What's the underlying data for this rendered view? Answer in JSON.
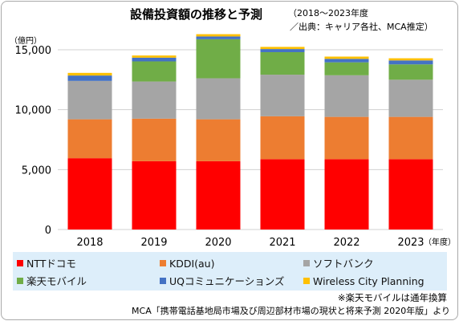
{
  "chart_data": {
    "type": "bar",
    "stacked": true,
    "title": "設備投資額の推移と予測",
    "subtitle_line1": "（2018～2023年度",
    "subtitle_line2": "／出典：キャリア各社、MCA推定）",
    "unit_label": "（億円）",
    "year_suffix": "（年度）",
    "categories": [
      "2018",
      "2019",
      "2020",
      "2021",
      "2022",
      "2023"
    ],
    "ylim": [
      0,
      15000
    ],
    "y_ticks": [
      0,
      5000,
      10000,
      15000
    ],
    "y_tick_labels": [
      "0",
      "5,000",
      "10,000",
      "15,000"
    ],
    "grid": "horizontal",
    "legend_position": "bottom",
    "series": [
      {
        "name": "NTTドコモ",
        "color": "#ff0000",
        "values": [
          5950,
          5700,
          5700,
          5870,
          5870,
          5870
        ]
      },
      {
        "name": "KDDI(au)",
        "color": "#ed7d31",
        "values": [
          3250,
          3550,
          3500,
          3580,
          3530,
          3530
        ]
      },
      {
        "name": "ソフトバンク",
        "color": "#a5a5a5",
        "values": [
          3200,
          3100,
          3420,
          3470,
          3470,
          3100
        ]
      },
      {
        "name": "楽天モバイル",
        "color": "#70ad47",
        "values": [
          0,
          1680,
          3260,
          1880,
          1080,
          1280
        ]
      },
      {
        "name": "UQコミュニケーションズ",
        "color": "#4472c4",
        "values": [
          450,
          310,
          230,
          260,
          290,
          330
        ]
      },
      {
        "name": "Wireless City Planning",
        "color": "#ffc000",
        "values": [
          220,
          180,
          190,
          180,
          190,
          180
        ]
      }
    ],
    "notes": [
      "※楽天モバイルは通年換算",
      "MCA「携帯電話基地局市場及び周辺部材市場の現状と将来予測 2020年版」より"
    ]
  }
}
